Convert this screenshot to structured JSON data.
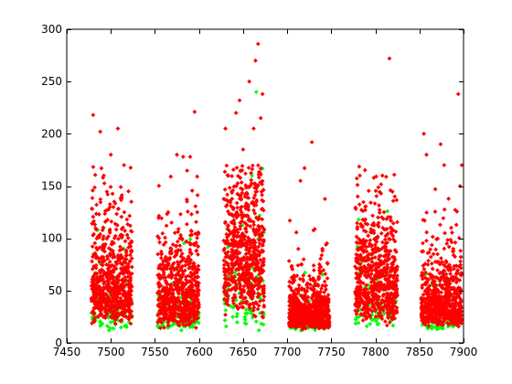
{
  "chart_data": {
    "type": "scatter",
    "title": "",
    "xlabel": "",
    "ylabel": "",
    "xlim": [
      7450,
      7900
    ],
    "ylim": [
      0,
      300
    ],
    "grid": false,
    "legend": "none",
    "x_ticks": [
      7450,
      7500,
      7550,
      7600,
      7650,
      7700,
      7750,
      7800,
      7850,
      7900
    ],
    "y_ticks": [
      0,
      50,
      100,
      150,
      200,
      250,
      300
    ],
    "colors": {
      "red": "#ff0000",
      "green": "#00ff00",
      "axis": "#000000"
    },
    "series": [
      {
        "name": "green",
        "color": "#00ff00",
        "clusters": [
          {
            "x_range": [
              7478,
              7524
            ],
            "y_median": 30,
            "count": 90
          },
          {
            "x_range": [
              7553,
              7600
            ],
            "y_median": 25,
            "count": 120
          },
          {
            "x_range": [
              7628,
              7674
            ],
            "y_median": 45,
            "count": 90
          },
          {
            "x_range": [
              7702,
              7748
            ],
            "y_median": 22,
            "count": 90
          },
          {
            "x_range": [
              7777,
              7825
            ],
            "y_median": 30,
            "count": 60
          },
          {
            "x_range": [
              7852,
              7898
            ],
            "y_median": 22,
            "count": 80
          }
        ],
        "points": [
          [
            7485,
            108
          ],
          [
            7492,
            110
          ],
          [
            7500,
            45
          ],
          [
            7505,
            40
          ],
          [
            7498,
            12
          ],
          [
            7575,
            70
          ],
          [
            7580,
            12
          ],
          [
            7590,
            15
          ],
          [
            7566,
            38
          ],
          [
            7640,
            115
          ],
          [
            7660,
            160
          ],
          [
            7665,
            240
          ],
          [
            7655,
            65
          ],
          [
            7668,
            12
          ],
          [
            7740,
            65
          ],
          [
            7725,
            40
          ],
          [
            7712,
            30
          ],
          [
            7781,
            118
          ],
          [
            7800,
            100
          ],
          [
            7810,
            28
          ],
          [
            7796,
            84
          ],
          [
            7860,
            42
          ],
          [
            7870,
            55
          ],
          [
            7888,
            30
          ]
        ]
      },
      {
        "name": "red",
        "color": "#ff0000",
        "clusters": [
          {
            "x_range": [
              7478,
              7524
            ],
            "y_median": 55,
            "count": 650
          },
          {
            "x_range": [
              7553,
              7600
            ],
            "y_median": 45,
            "count": 650
          },
          {
            "x_range": [
              7628,
              7674
            ],
            "y_median": 95,
            "count": 650
          },
          {
            "x_range": [
              7702,
              7748
            ],
            "y_median": 28,
            "count": 800
          },
          {
            "x_range": [
              7777,
              7825
            ],
            "y_median": 58,
            "count": 650
          },
          {
            "x_range": [
              7852,
              7898
            ],
            "y_median": 38,
            "count": 650
          }
        ],
        "points": [
          [
            7480,
            218
          ],
          [
            7488,
            202
          ],
          [
            7508,
            205
          ],
          [
            7500,
            180
          ],
          [
            7492,
            160
          ],
          [
            7515,
            170
          ],
          [
            7520,
            145
          ],
          [
            7568,
            159
          ],
          [
            7575,
            180
          ],
          [
            7595,
            221
          ],
          [
            7590,
            178
          ],
          [
            7582,
            178
          ],
          [
            7565,
            125
          ],
          [
            7598,
            125
          ],
          [
            7630,
            205
          ],
          [
            7642,
            220
          ],
          [
            7646,
            232
          ],
          [
            7650,
            185
          ],
          [
            7657,
            250
          ],
          [
            7664,
            270
          ],
          [
            7667,
            286
          ],
          [
            7672,
            238
          ],
          [
            7662,
            205
          ],
          [
            7670,
            215
          ],
          [
            7703,
            117
          ],
          [
            7715,
            155
          ],
          [
            7728,
            192
          ],
          [
            7740,
            90
          ],
          [
            7780,
            140
          ],
          [
            7803,
            120
          ],
          [
            7816,
            272
          ],
          [
            7808,
            160
          ],
          [
            7822,
            140
          ],
          [
            7855,
            200
          ],
          [
            7858,
            180
          ],
          [
            7868,
            147
          ],
          [
            7874,
            190
          ],
          [
            7878,
            170
          ],
          [
            7894,
            238
          ],
          [
            7898,
            170
          ],
          [
            7896,
            150
          ]
        ]
      }
    ]
  }
}
